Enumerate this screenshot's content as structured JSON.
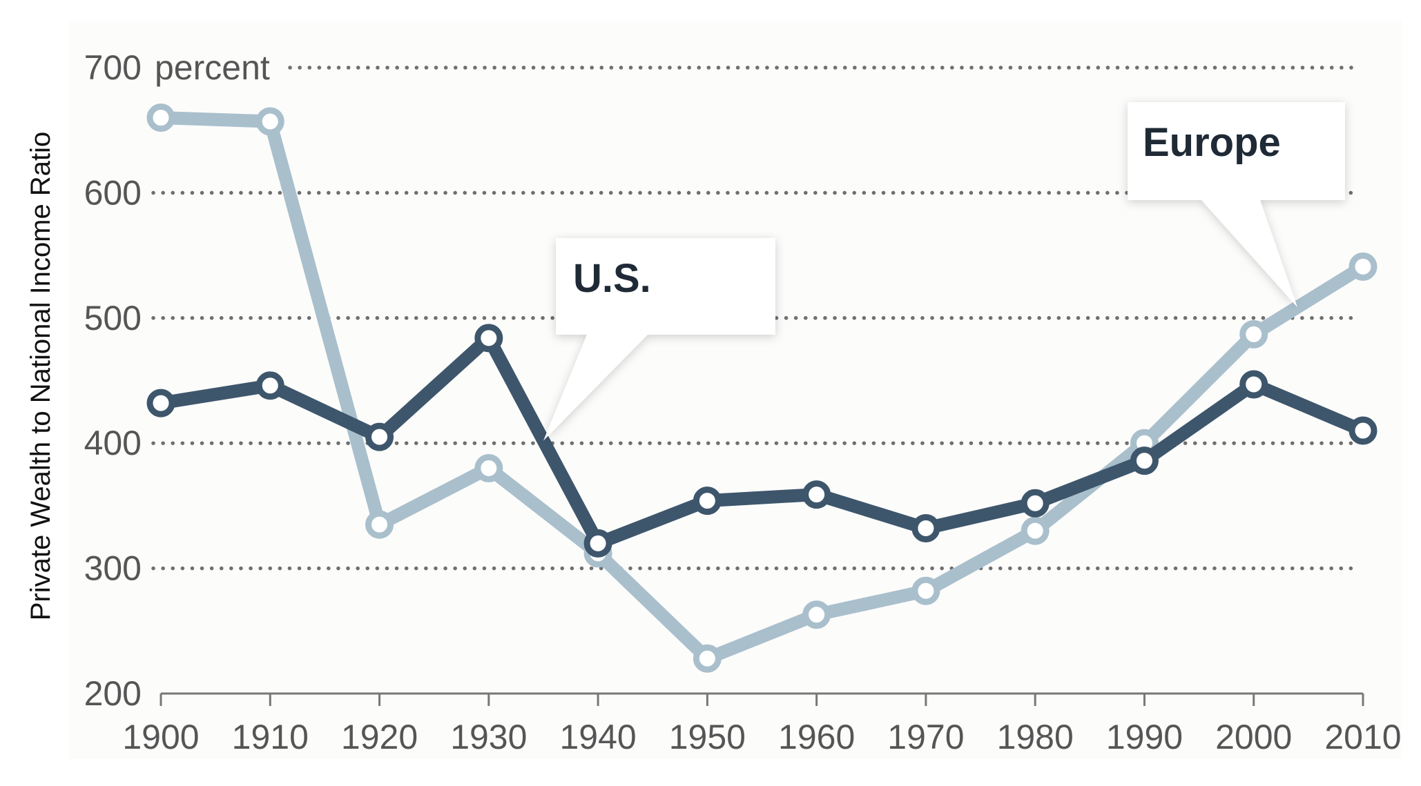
{
  "chart_data": {
    "type": "line",
    "title": "",
    "xlabel": "",
    "ylabel": "Private Wealth to National Income Ratio",
    "y_unit_label": "percent",
    "x": [
      1900,
      1910,
      1920,
      1930,
      1940,
      1950,
      1960,
      1970,
      1980,
      1990,
      2000,
      2010
    ],
    "x_tick_labels": [
      "1900",
      "1910",
      "1920",
      "1930",
      "1940",
      "1950",
      "1960",
      "1970",
      "1980",
      "1990",
      "2000",
      "2010"
    ],
    "ylim": [
      200,
      700
    ],
    "y_ticks": [
      200,
      300,
      400,
      500,
      600,
      700
    ],
    "y_tick_labels": [
      "200",
      "300",
      "400",
      "500",
      "600",
      "700"
    ],
    "grid": "dotted horizontal at 300-700",
    "series": [
      {
        "name": "Europe",
        "color": "#a9bfcc",
        "values": [
          660,
          657,
          335,
          380,
          312,
          228,
          263,
          282,
          330,
          400,
          487,
          541
        ]
      },
      {
        "name": "U.S.",
        "color": "#3e566c",
        "values": [
          432,
          446,
          405,
          484,
          320,
          354,
          359,
          332,
          352,
          386,
          447,
          410
        ]
      }
    ],
    "annotations": [
      {
        "text": "U.S.",
        "series": "U.S.",
        "points_to_year": 1935
      },
      {
        "text": "Europe",
        "series": "Europe",
        "points_to_year": 2004
      }
    ]
  }
}
